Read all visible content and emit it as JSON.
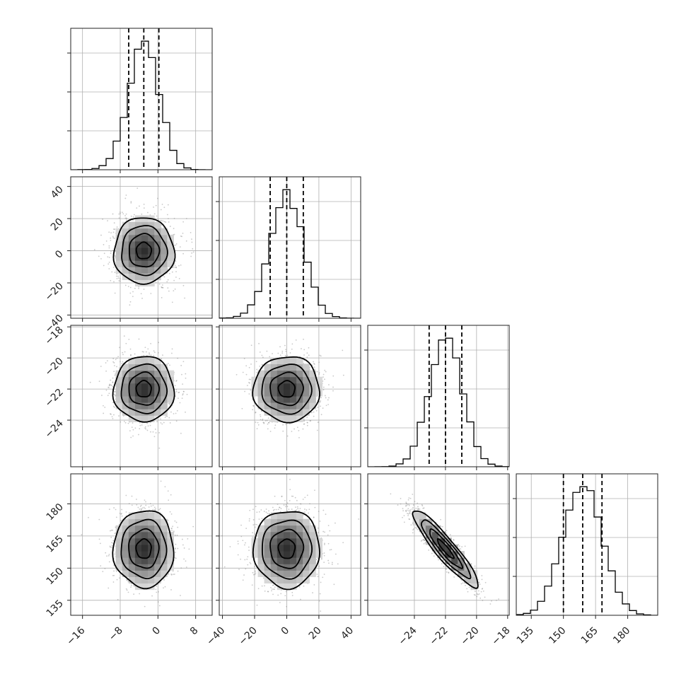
{
  "chart_data": {
    "type": "corner",
    "grid": true,
    "parameters": [
      {
        "index": 0,
        "mean": -3,
        "sd": 3.2,
        "range": [
          -18.5,
          11.5
        ],
        "ticks": [
          -16,
          -8,
          0,
          8
        ],
        "tick_labels": [
          "−16",
          "−8",
          "0",
          "8"
        ],
        "quantiles": [
          -6.2,
          -3.0,
          0.2
        ]
      },
      {
        "index": 1,
        "mean": 0,
        "sd": 10.3,
        "range": [
          -42,
          46
        ],
        "ticks": [
          -40,
          -20,
          0,
          20,
          40
        ],
        "tick_labels": [
          "−40",
          "−20",
          "0",
          "20",
          "40"
        ],
        "quantiles": [
          -10.3,
          0.0,
          10.3
        ]
      },
      {
        "index": 2,
        "mean": -22,
        "sd": 1.05,
        "range": [
          -27.0,
          -17.9
        ],
        "ticks": [
          -24,
          -22,
          -20,
          -18
        ],
        "tick_labels": [
          "−24",
          "−22",
          "−20",
          "−18"
        ],
        "quantiles": [
          -23.05,
          -22.0,
          -20.95
        ]
      },
      {
        "index": 3,
        "mean": 159,
        "sd": 9.0,
        "range": [
          128,
          194
        ],
        "ticks": [
          135,
          150,
          165,
          180
        ],
        "tick_labels": [
          "135",
          "150",
          "165",
          "180"
        ],
        "quantiles": [
          150,
          159,
          168
        ]
      }
    ],
    "correlations": {
      "2-3": -0.92
    },
    "histogram_bins": 20,
    "contour_levels_sigma": [
      0.5,
      1.0,
      1.5,
      2.0
    ],
    "colors": {
      "line": "#000000",
      "points": "#555555",
      "grid": "#b0b0b0"
    }
  }
}
